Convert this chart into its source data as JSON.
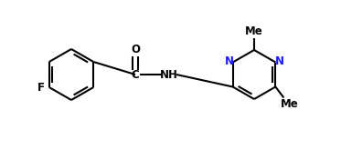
{
  "bg_color": "#ffffff",
  "bond_color": "#000000",
  "label_color_black": "#000000",
  "label_color_N": "#1a1aff",
  "label_F": "F",
  "label_O": "O",
  "label_C": "C",
  "label_NH": "NH",
  "label_N1": "N",
  "label_N2": "N",
  "label_Me1": "Me",
  "label_Me2": "Me",
  "figsize": [
    3.73,
    1.65
  ],
  "dpi": 100,
  "lw": 1.5,
  "font_size": 8.5
}
